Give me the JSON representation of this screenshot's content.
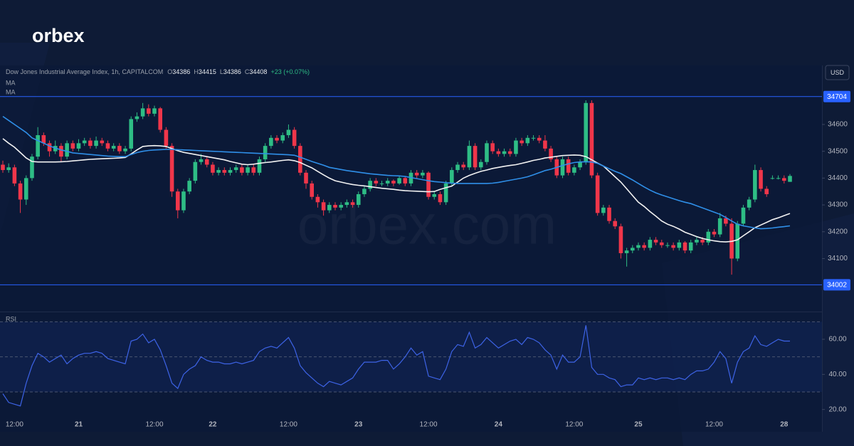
{
  "brand": "orbex",
  "watermark": "orbex.com",
  "chart_data": {
    "type": "candlestick",
    "title": "Dow Jones Industrial Average Index, 1h, CAPITALCOM",
    "ohlc_legend": [
      "O",
      "H",
      "L",
      "C"
    ],
    "change": "+23 (+0.07%)",
    "currency": "USD",
    "up_color": "#2ebd85",
    "down_color": "#f0364a",
    "categories": [
      null,
      null,
      "12:00",
      null,
      null,
      null,
      null,
      null,
      null,
      null,
      null,
      null,
      null,
      "21",
      null,
      null,
      null,
      null,
      null,
      null,
      null,
      null,
      null,
      null,
      null,
      null,
      "12:00",
      null,
      null,
      null,
      null,
      null,
      null,
      null,
      null,
      null,
      "22",
      null,
      null,
      null,
      null,
      null,
      null,
      null,
      null,
      null,
      null,
      null,
      null,
      "12:00",
      null,
      null,
      null,
      null,
      null,
      null,
      null,
      null,
      null,
      null,
      null,
      "23",
      null,
      null,
      null,
      null,
      null,
      null,
      null,
      null,
      null,
      null,
      null,
      "12:00",
      null,
      null,
      null,
      null,
      null,
      null,
      null,
      null,
      null,
      null,
      null,
      "24",
      null,
      null,
      null,
      null,
      null,
      null,
      null,
      null,
      null,
      null,
      null,
      null,
      "12:00",
      null,
      null,
      null,
      null,
      null,
      null,
      null,
      null,
      null,
      null,
      "25",
      null,
      null,
      null,
      null,
      null,
      null,
      null,
      null,
      null,
      null,
      null,
      null,
      "12:00",
      null,
      null,
      null,
      null,
      null,
      null,
      null,
      null,
      null,
      null,
      null,
      "28",
      null
    ],
    "ohlc": [
      [
        34450,
        34465,
        34420,
        34430
      ],
      [
        34430,
        34455,
        34420,
        34440
      ],
      [
        34440,
        34450,
        34370,
        34380
      ],
      [
        34380,
        34390,
        34270,
        34320
      ],
      [
        34320,
        34410,
        34300,
        34400
      ],
      [
        34400,
        34490,
        34390,
        34480
      ],
      [
        34480,
        34590,
        34470,
        34560
      ],
      [
        34560,
        34570,
        34520,
        34530
      ],
      [
        34530,
        34540,
        34480,
        34500
      ],
      [
        34500,
        34540,
        34490,
        34520
      ],
      [
        34520,
        34530,
        34460,
        34480
      ],
      [
        34480,
        34540,
        34470,
        34530
      ],
      [
        34530,
        34540,
        34500,
        34510
      ],
      [
        34510,
        34545,
        34500,
        34530
      ],
      [
        34530,
        34550,
        34520,
        34540
      ],
      [
        34540,
        34550,
        34510,
        34520
      ],
      [
        34520,
        34555,
        34510,
        34540
      ],
      [
        34540,
        34550,
        34520,
        34530
      ],
      [
        34530,
        34540,
        34500,
        34510
      ],
      [
        34510,
        34530,
        34500,
        34520
      ],
      [
        34520,
        34530,
        34490,
        34500
      ],
      [
        34500,
        34520,
        34490,
        34510
      ],
      [
        34510,
        34630,
        34500,
        34620
      ],
      [
        34620,
        34645,
        34610,
        34630
      ],
      [
        34630,
        34680,
        34620,
        34660
      ],
      [
        34660,
        34675,
        34630,
        34640
      ],
      [
        34640,
        34670,
        34630,
        34660
      ],
      [
        34660,
        34665,
        34570,
        34580
      ],
      [
        34580,
        34590,
        34510,
        34520
      ],
      [
        34520,
        34530,
        34330,
        34350
      ],
      [
        34350,
        34360,
        34250,
        34280
      ],
      [
        34280,
        34360,
        34270,
        34350
      ],
      [
        34350,
        34400,
        34340,
        34390
      ],
      [
        34390,
        34470,
        34380,
        34460
      ],
      [
        34460,
        34490,
        34450,
        34470
      ],
      [
        34470,
        34480,
        34440,
        34450
      ],
      [
        34450,
        34460,
        34410,
        34420
      ],
      [
        34420,
        34440,
        34410,
        34430
      ],
      [
        34430,
        34440,
        34410,
        34420
      ],
      [
        34420,
        34440,
        34410,
        34430
      ],
      [
        34430,
        34450,
        34420,
        34440
      ],
      [
        34440,
        34450,
        34410,
        34420
      ],
      [
        34420,
        34450,
        34410,
        34440
      ],
      [
        34440,
        34450,
        34410,
        34420
      ],
      [
        34420,
        34480,
        34410,
        34470
      ],
      [
        34470,
        34530,
        34460,
        34520
      ],
      [
        34520,
        34560,
        34510,
        34550
      ],
      [
        34550,
        34560,
        34530,
        34540
      ],
      [
        34540,
        34570,
        34530,
        34560
      ],
      [
        34560,
        34600,
        34550,
        34580
      ],
      [
        34580,
        34590,
        34510,
        34520
      ],
      [
        34520,
        34530,
        34410,
        34420
      ],
      [
        34420,
        34430,
        34360,
        34380
      ],
      [
        34380,
        34390,
        34320,
        34330
      ],
      [
        34330,
        34340,
        34290,
        34310
      ],
      [
        34310,
        34320,
        34260,
        34280
      ],
      [
        34280,
        34310,
        34270,
        34300
      ],
      [
        34300,
        34310,
        34280,
        34290
      ],
      [
        34290,
        34310,
        34280,
        34300
      ],
      [
        34300,
        34320,
        34290,
        34310
      ],
      [
        34310,
        34320,
        34290,
        34300
      ],
      [
        34300,
        34350,
        34290,
        34340
      ],
      [
        34340,
        34370,
        34330,
        34360
      ],
      [
        34360,
        34400,
        34350,
        34390
      ],
      [
        34390,
        34400,
        34370,
        34380
      ],
      [
        34380,
        34390,
        34370,
        34380
      ],
      [
        34380,
        34400,
        34370,
        34390
      ],
      [
        34390,
        34395,
        34370,
        34380
      ],
      [
        34380,
        34410,
        34375,
        34400
      ],
      [
        34400,
        34405,
        34370,
        34380
      ],
      [
        34380,
        34430,
        34370,
        34420
      ],
      [
        34420,
        34430,
        34400,
        34410
      ],
      [
        34410,
        34430,
        34400,
        34420
      ],
      [
        34420,
        34425,
        34320,
        34330
      ],
      [
        34330,
        34350,
        34320,
        34340
      ],
      [
        34340,
        34350,
        34300,
        34310
      ],
      [
        34310,
        34390,
        34300,
        34380
      ],
      [
        34380,
        34440,
        34370,
        34430
      ],
      [
        34430,
        34460,
        34420,
        34450
      ],
      [
        34450,
        34460,
        34430,
        34440
      ],
      [
        34440,
        34540,
        34430,
        34520
      ],
      [
        34520,
        34530,
        34430,
        34440
      ],
      [
        34440,
        34470,
        34430,
        34460
      ],
      [
        34460,
        34540,
        34450,
        34530
      ],
      [
        34530,
        34540,
        34490,
        34500
      ],
      [
        34500,
        34510,
        34480,
        34490
      ],
      [
        34490,
        34510,
        34480,
        34500
      ],
      [
        34500,
        34510,
        34480,
        34490
      ],
      [
        34490,
        34550,
        34480,
        34540
      ],
      [
        34540,
        34550,
        34520,
        34530
      ],
      [
        34530,
        34560,
        34520,
        34550
      ],
      [
        34550,
        34560,
        34540,
        34550
      ],
      [
        34550,
        34560,
        34530,
        34540
      ],
      [
        34540,
        34560,
        34500,
        34510
      ],
      [
        34510,
        34520,
        34460,
        34470
      ],
      [
        34470,
        34480,
        34400,
        34410
      ],
      [
        34410,
        34480,
        34400,
        34470
      ],
      [
        34470,
        34480,
        34410,
        34420
      ],
      [
        34420,
        34450,
        34410,
        34440
      ],
      [
        34440,
        34470,
        34430,
        34460
      ],
      [
        34460,
        34690,
        34450,
        34680
      ],
      [
        34680,
        34690,
        34400,
        34410
      ],
      [
        34410,
        34420,
        34260,
        34270
      ],
      [
        34270,
        34300,
        34260,
        34290
      ],
      [
        34290,
        34300,
        34230,
        34240
      ],
      [
        34240,
        34250,
        34210,
        34220
      ],
      [
        34220,
        34230,
        34100,
        34120
      ],
      [
        34120,
        34140,
        34070,
        34130
      ],
      [
        34130,
        34150,
        34120,
        34140
      ],
      [
        34140,
        34160,
        34130,
        34150
      ],
      [
        34150,
        34160,
        34130,
        34140
      ],
      [
        34140,
        34180,
        34130,
        34170
      ],
      [
        34170,
        34180,
        34150,
        34160
      ],
      [
        34160,
        34170,
        34140,
        34150
      ],
      [
        34150,
        34160,
        34140,
        34150
      ],
      [
        34150,
        34160,
        34130,
        34140
      ],
      [
        34140,
        34170,
        34130,
        34160
      ],
      [
        34160,
        34165,
        34120,
        34130
      ],
      [
        34130,
        34170,
        34120,
        34160
      ],
      [
        34160,
        34180,
        34150,
        34170
      ],
      [
        34170,
        34180,
        34150,
        34160
      ],
      [
        34160,
        34210,
        34150,
        34200
      ],
      [
        34200,
        34210,
        34180,
        34190
      ],
      [
        34190,
        34270,
        34180,
        34250
      ],
      [
        34250,
        34260,
        34220,
        34230
      ],
      [
        34230,
        34250,
        34040,
        34100
      ],
      [
        34100,
        34240,
        34090,
        34230
      ],
      [
        34230,
        34300,
        34220,
        34290
      ],
      [
        34290,
        34330,
        34280,
        34320
      ],
      [
        34320,
        34450,
        34310,
        34430
      ],
      [
        34430,
        34440,
        34350,
        34360
      ],
      [
        34360,
        34370,
        34330,
        34340
      ],
      [
        34400,
        34410,
        34395,
        34400
      ],
      [
        34400,
        34410,
        34395,
        34400
      ],
      [
        34400,
        34410,
        34380,
        34390
      ],
      [
        34386,
        34415,
        34386,
        34408
      ]
    ],
    "series": [
      {
        "name": "MA",
        "color": "#f2f2f2",
        "values": [
          34547,
          34530,
          34515,
          34495,
          34475,
          34462,
          34460,
          34460,
          34460,
          34460,
          34461,
          34462,
          34464,
          34466,
          34468,
          34470,
          34471,
          34472,
          34473,
          34474,
          34475,
          34477,
          34490,
          34505,
          34518,
          34520,
          34521,
          34520,
          34518,
          34510,
          34502,
          34496,
          34492,
          34488,
          34484,
          34480,
          34476,
          34472,
          34468,
          34462,
          34457,
          34452,
          34450,
          34452,
          34455,
          34458,
          34460,
          34463,
          34466,
          34468,
          34465,
          34458,
          34448,
          34438,
          34425,
          34412,
          34400,
          34390,
          34385,
          34380,
          34376,
          34373,
          34371,
          34368,
          34365,
          34362,
          34360,
          34358,
          34355,
          34353,
          34352,
          34351,
          34350,
          34349,
          34350,
          34358,
          34364,
          34370,
          34385,
          34400,
          34410,
          34418,
          34425,
          34430,
          34436,
          34440,
          34444,
          34447,
          34450,
          34455,
          34460,
          34466,
          34470,
          34475,
          34478,
          34481,
          34484,
          34485,
          34486,
          34485,
          34480,
          34468,
          34456,
          34445,
          34425,
          34405,
          34385,
          34360,
          34335,
          34310,
          34294,
          34275,
          34258,
          34240,
          34228,
          34220,
          34210,
          34198,
          34190,
          34182,
          34175,
          34170,
          34166,
          34163,
          34162,
          34164,
          34170,
          34185,
          34200,
          34215,
          34225,
          34235,
          34245,
          34252,
          34260,
          34268
        ]
      },
      {
        "name": "MA",
        "color": "#2f8fe8",
        "values": [
          34630,
          34615,
          34600,
          34585,
          34570,
          34550,
          34540,
          34530,
          34520,
          34512,
          34505,
          34500,
          34494,
          34492,
          34490,
          34488,
          34486,
          34484,
          34482,
          34481,
          34480,
          34480,
          34488,
          34495,
          34500,
          34503,
          34505,
          34506,
          34507,
          34507,
          34506,
          34505,
          34504,
          34503,
          34502,
          34501,
          34500,
          34499,
          34498,
          34497,
          34496,
          34495,
          34494,
          34493,
          34492,
          34491,
          34490,
          34489,
          34488,
          34487,
          34485,
          34478,
          34470,
          34462,
          34455,
          34448,
          34440,
          34436,
          34432,
          34428,
          34425,
          34422,
          34419,
          34416,
          34414,
          34412,
          34410,
          34409,
          34408,
          34406,
          34402,
          34398,
          34394,
          34390,
          34387,
          34385,
          34383,
          34381,
          34380,
          34380,
          34380,
          34380,
          34380,
          34380,
          34381,
          34384,
          34388,
          34392,
          34396,
          34400,
          34405,
          34412,
          34420,
          34428,
          34433,
          34440,
          34447,
          34453,
          34458,
          34460,
          34461,
          34460,
          34455,
          34445,
          34435,
          34425,
          34417,
          34405,
          34393,
          34380,
          34367,
          34355,
          34345,
          34337,
          34330,
          34323,
          34316,
          34310,
          34305,
          34297,
          34289,
          34281,
          34273,
          34265,
          34253,
          34240,
          34228,
          34222,
          34218,
          34214,
          34211,
          34212,
          34214,
          34217,
          34219,
          34222
        ]
      }
    ],
    "hlines": [
      34704,
      34002
    ],
    "hline_color": "#2962ff",
    "ylim": [
      33905,
      34820
    ],
    "yticks": [
      34100,
      34200,
      34300,
      34400,
      34500,
      34600
    ],
    "rsi": {
      "name": "RSI",
      "color": "#3d63e6",
      "values": [
        29,
        24,
        23,
        22,
        35,
        45,
        52,
        50,
        47,
        49,
        51,
        46,
        49,
        51,
        52,
        52,
        53,
        52,
        49,
        48,
        47,
        46,
        59,
        60,
        63,
        58,
        60,
        54,
        45,
        35,
        32,
        40,
        43,
        45,
        50,
        48,
        47,
        47,
        46,
        46,
        47,
        46,
        47,
        48,
        53,
        55,
        56,
        55,
        58,
        61,
        55,
        45,
        41,
        38,
        35,
        33,
        36,
        35,
        34,
        36,
        38,
        43,
        47,
        47,
        47,
        48,
        48,
        43,
        46,
        50,
        55,
        51,
        53,
        39,
        38,
        37,
        43,
        53,
        57,
        56,
        64,
        55,
        57,
        61,
        58,
        55,
        57,
        59,
        60,
        57,
        61,
        60,
        58,
        54,
        51,
        43,
        51,
        47,
        47,
        50,
        68,
        44,
        40,
        40,
        38,
        37,
        33,
        34,
        34,
        38,
        37,
        38,
        37,
        38,
        38,
        37,
        38,
        37,
        40,
        42,
        42,
        43,
        47,
        53,
        49,
        35,
        47,
        53,
        55,
        62,
        57,
        56,
        58,
        60,
        59,
        59
      ],
      "ylim": [
        15,
        75
      ],
      "yticks": [
        {
          "value": 20,
          "label": "20.00"
        },
        {
          "value": 40,
          "label": "40.00"
        },
        {
          "value": 60,
          "label": "60.00"
        }
      ],
      "levels": [
        30,
        50,
        70
      ]
    }
  }
}
